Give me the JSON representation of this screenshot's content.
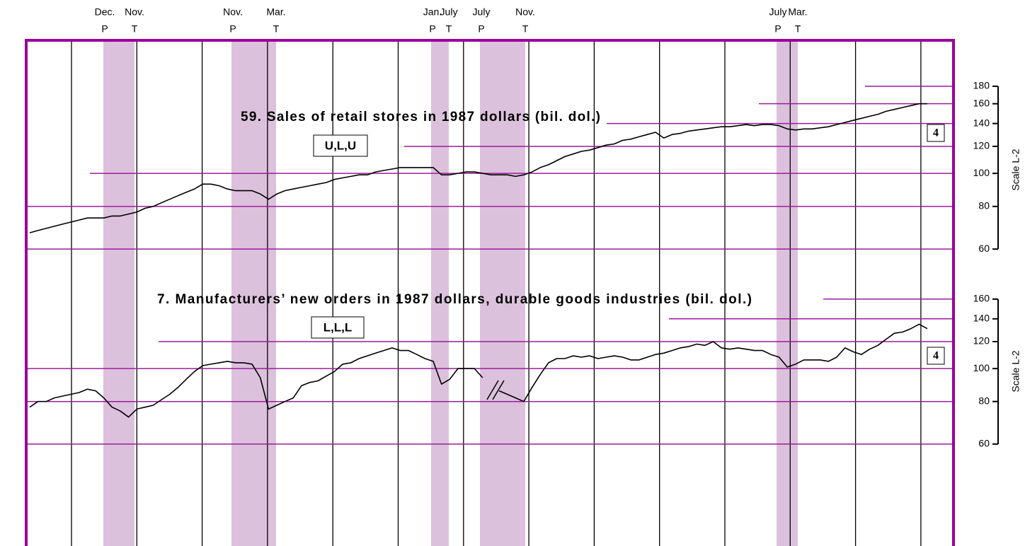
{
  "recessions": [
    {
      "peak_month": "Dec.",
      "peak": "P",
      "trough_month": "Nov.",
      "trough": "T"
    },
    {
      "peak_month": "Nov.",
      "peak": "P",
      "trough_month": "Mar.",
      "trough": "T"
    },
    {
      "peak_month": "Jan.",
      "peak": "P",
      "trough_month": "July",
      "trough": "T"
    },
    {
      "peak_month": "July",
      "peak": "P",
      "trough_month": "Nov.",
      "trough": "T"
    },
    {
      "peak_month": "July",
      "peak": "P",
      "trough_month": "Mar.",
      "trough": "T"
    }
  ],
  "chart_data": [
    {
      "type": "line",
      "title": "59. Sales of retail stores in 1987 dollars (bil. dol.)",
      "code": "U,L,U",
      "badge": "4",
      "scale_label": "Scale L-2",
      "log_scale": true,
      "color": "#000000",
      "grid_color": "#9c1c9c",
      "ylim": [
        57.8,
        190.6
      ],
      "yticks": [
        60,
        80,
        100,
        120,
        140,
        160,
        180
      ],
      "values": [
        67,
        68,
        69,
        70,
        71,
        72,
        73,
        74,
        74,
        74,
        75,
        75,
        76,
        77,
        79,
        80,
        82,
        84,
        86,
        88,
        90,
        93,
        93,
        92,
        90,
        89,
        89,
        89,
        87,
        84,
        87,
        89,
        90,
        91,
        92,
        93,
        94,
        96,
        97,
        98,
        99,
        99,
        101,
        102,
        103,
        104,
        104,
        104,
        104,
        104,
        99,
        99,
        100,
        101,
        101,
        100,
        99,
        99,
        99,
        98,
        99,
        101,
        104,
        106,
        109,
        112,
        114,
        116,
        117,
        119,
        121,
        122,
        125,
        126,
        128,
        130,
        132,
        127,
        130,
        131,
        133,
        134,
        135,
        136,
        137,
        137,
        138,
        139,
        138,
        139,
        139,
        138,
        135,
        134,
        135,
        135,
        136,
        137,
        139,
        141,
        143,
        145,
        147,
        149,
        152,
        154,
        156,
        158,
        160,
        160
      ]
    },
    {
      "type": "line",
      "title": "7. Manufacturers’ new orders in 1987 dollars, durable goods industries (bil. dol.)",
      "code": "L,L,L",
      "badge": "4",
      "scale_label": "Scale L-2",
      "log_scale": true,
      "color": "#000000",
      "grid_color": "#9c1c9c",
      "ylim": [
        56.6,
        170.2
      ],
      "yticks": [
        60,
        80,
        100,
        120,
        140,
        160
      ],
      "values": [
        77,
        80,
        80,
        82,
        83,
        84,
        85,
        87,
        86,
        82,
        77,
        75,
        72,
        76,
        77,
        78,
        81,
        84,
        88,
        93,
        98,
        102,
        103,
        104,
        105,
        104,
        104,
        103,
        94,
        76,
        78,
        80,
        82,
        89,
        91,
        92,
        95,
        98,
        103,
        104,
        107,
        109,
        111,
        113,
        115,
        113,
        113,
        110,
        107,
        105,
        90,
        93,
        100,
        100,
        100,
        94,
        null,
        86,
        84,
        82,
        80,
        88,
        96,
        104,
        107,
        107,
        109,
        108,
        109,
        107,
        108,
        109,
        108,
        106,
        106,
        108,
        110,
        111,
        113,
        115,
        116,
        118,
        117,
        120,
        115,
        114,
        115,
        114,
        113,
        113,
        110,
        108,
        101,
        103,
        106,
        106,
        106,
        105,
        108,
        115,
        112,
        110,
        114,
        117,
        122,
        127,
        128,
        131,
        135,
        131
      ]
    }
  ]
}
